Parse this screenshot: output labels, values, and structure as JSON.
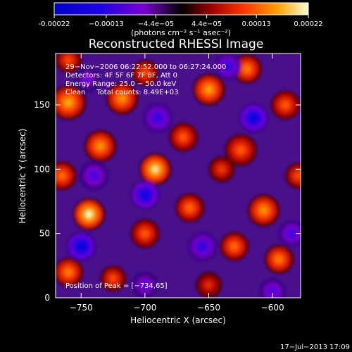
{
  "chart_data": {
    "type": "heatmap",
    "title": "Reconstructed RHESSI Image",
    "xlabel": "Heliocentric X (arcsec)",
    "ylabel": "Heliocentric Y (arcsec)",
    "xlim": [
      -770,
      -578
    ],
    "ylim": [
      0,
      190
    ],
    "xticks": [
      -750,
      -700,
      -650,
      -600
    ],
    "yticks": [
      0,
      50,
      100,
      150
    ],
    "colorbar": {
      "range": [
        -0.00022,
        0.00022
      ],
      "ticks": [
        -0.00022,
        -0.00013,
        -4.4e-05,
        4.4e-05,
        0.00013,
        0.00022
      ],
      "tick_labels": [
        "-0.00022",
        "−0.00013",
        "−4.4e−05",
        "4.4e−05",
        "0.00013",
        "0.00022"
      ],
      "unit_label": "(photons cm⁻² s⁻¹ asec⁻²)"
    },
    "annotations": [
      "29−Nov−2006 06:22:52.000 to 06:27:24.000",
      "Detectors: 4F 5F 6F 7F 8F, Att 0",
      "Energy Range: 25.0 − 50.0 keV",
      "Clean     Total counts: 8.49E+03"
    ],
    "peak_label": "Position of Peak = [−734,65]",
    "peak": [
      -734,
      65
    ],
    "timestamp": "17−Jul−2013 17:09",
    "blobs": [
      {
        "x": -744,
        "y": 65,
        "v": 1.0,
        "s": 11
      },
      {
        "x": -692,
        "y": 100,
        "v": 0.95,
        "s": 11
      },
      {
        "x": -760,
        "y": 152,
        "v": 0.8,
        "s": 12
      },
      {
        "x": -718,
        "y": 155,
        "v": 0.75,
        "s": 11
      },
      {
        "x": -650,
        "y": 162,
        "v": 0.8,
        "s": 11
      },
      {
        "x": -620,
        "y": 178,
        "v": 0.7,
        "s": 10
      },
      {
        "x": -735,
        "y": 118,
        "v": 0.75,
        "s": 11
      },
      {
        "x": -670,
        "y": 125,
        "v": 0.6,
        "s": 10
      },
      {
        "x": -625,
        "y": 115,
        "v": 0.6,
        "s": 11
      },
      {
        "x": -590,
        "y": 150,
        "v": 0.6,
        "s": 10
      },
      {
        "x": -607,
        "y": 68,
        "v": 0.75,
        "s": 11
      },
      {
        "x": -595,
        "y": 30,
        "v": 0.7,
        "s": 10
      },
      {
        "x": -630,
        "y": 40,
        "v": 0.65,
        "s": 10
      },
      {
        "x": -665,
        "y": 70,
        "v": 0.65,
        "s": 10
      },
      {
        "x": -700,
        "y": 50,
        "v": 0.6,
        "s": 10
      },
      {
        "x": -760,
        "y": 20,
        "v": 0.7,
        "s": 10
      },
      {
        "x": -765,
        "y": 95,
        "v": 0.65,
        "s": 10
      },
      {
        "x": -725,
        "y": 15,
        "v": 0.55,
        "s": 9
      },
      {
        "x": -700,
        "y": 175,
        "v": 0.55,
        "s": 9
      },
      {
        "x": -640,
        "y": 100,
        "v": 0.5,
        "s": 9
      },
      {
        "x": -760,
        "y": 185,
        "v": 0.55,
        "s": 9
      },
      {
        "x": -580,
        "y": 95,
        "v": 0.55,
        "s": 9
      },
      {
        "x": -650,
        "y": 10,
        "v": 0.45,
        "s": 9
      },
      {
        "x": -750,
        "y": 40,
        "v": -0.9,
        "s": 10
      },
      {
        "x": -700,
        "y": 80,
        "v": -0.8,
        "s": 10
      },
      {
        "x": -615,
        "y": 140,
        "v": -0.85,
        "s": 10
      },
      {
        "x": -635,
        "y": 180,
        "v": -0.6,
        "s": 9
      },
      {
        "x": -740,
        "y": 95,
        "v": -0.5,
        "s": 10
      },
      {
        "x": -585,
        "y": 50,
        "v": -0.55,
        "s": 9
      },
      {
        "x": -655,
        "y": 40,
        "v": -0.6,
        "s": 10
      },
      {
        "x": -690,
        "y": 140,
        "v": -0.6,
        "s": 10
      },
      {
        "x": -745,
        "y": 170,
        "v": -0.4,
        "s": 9
      },
      {
        "x": -600,
        "y": 5,
        "v": -0.5,
        "s": 9
      },
      {
        "x": -700,
        "y": 10,
        "v": -0.45,
        "s": 9
      }
    ]
  }
}
